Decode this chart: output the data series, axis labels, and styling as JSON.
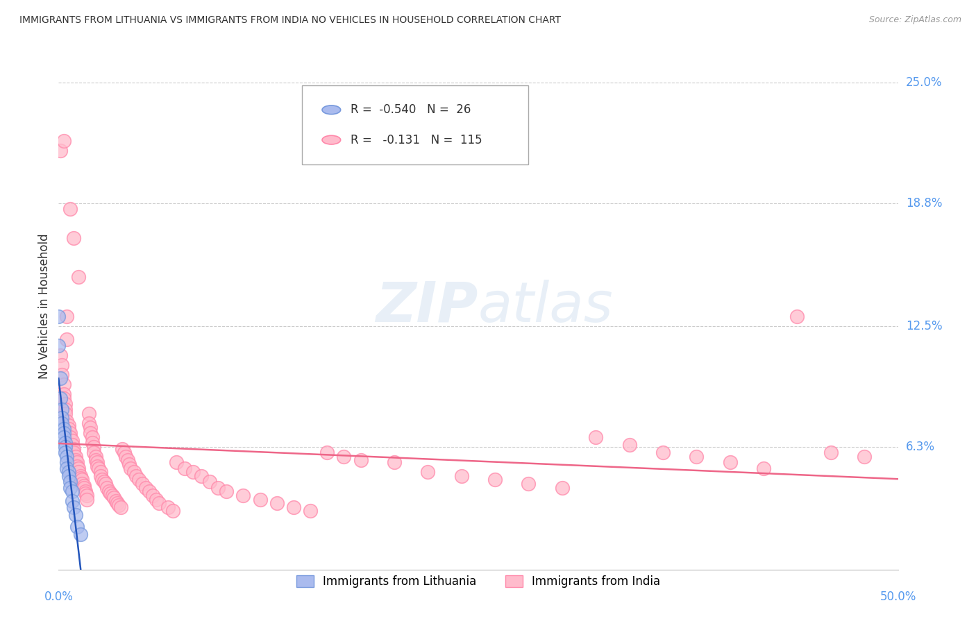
{
  "title": "IMMIGRANTS FROM LITHUANIA VS IMMIGRANTS FROM INDIA NO VEHICLES IN HOUSEHOLD CORRELATION CHART",
  "source": "Source: ZipAtlas.com",
  "ylabel": "No Vehicles in Household",
  "ytick_labels": [
    "25.0%",
    "18.8%",
    "12.5%",
    "6.3%"
  ],
  "ytick_values": [
    0.25,
    0.188,
    0.125,
    0.063
  ],
  "legend_lithuania_R": "-0.540",
  "legend_lithuania_N": "26",
  "legend_india_R": "-0.131",
  "legend_india_N": "115",
  "watermark_text": "ZIPatlas",
  "background_color": "#ffffff",
  "scatter_fill_lithuania": "#aabbee",
  "scatter_edge_lithuania": "#7799dd",
  "scatter_fill_india": "#ffbbcc",
  "scatter_edge_india": "#ff88aa",
  "line_color_lithuania": "#2255bb",
  "line_color_india": "#ee6688",
  "grid_color": "#cccccc",
  "tick_label_color": "#5599ee",
  "title_color": "#333333",
  "source_color": "#999999",
  "ylabel_color": "#333333",
  "legend_edge_color": "#aaaaaa",
  "lithuania_points": [
    [
      0.0,
      0.13
    ],
    [
      0.0,
      0.115
    ],
    [
      0.001,
      0.098
    ],
    [
      0.001,
      0.088
    ],
    [
      0.002,
      0.082
    ],
    [
      0.002,
      0.078
    ],
    [
      0.002,
      0.075
    ],
    [
      0.003,
      0.072
    ],
    [
      0.003,
      0.07
    ],
    [
      0.003,
      0.068
    ],
    [
      0.004,
      0.065
    ],
    [
      0.004,
      0.063
    ],
    [
      0.004,
      0.06
    ],
    [
      0.005,
      0.058
    ],
    [
      0.005,
      0.055
    ],
    [
      0.005,
      0.052
    ],
    [
      0.006,
      0.05
    ],
    [
      0.006,
      0.048
    ],
    [
      0.007,
      0.045
    ],
    [
      0.007,
      0.042
    ],
    [
      0.008,
      0.04
    ],
    [
      0.008,
      0.035
    ],
    [
      0.009,
      0.032
    ],
    [
      0.01,
      0.028
    ],
    [
      0.011,
      0.022
    ],
    [
      0.013,
      0.018
    ]
  ],
  "india_points": [
    [
      0.001,
      0.215
    ],
    [
      0.003,
      0.22
    ],
    [
      0.007,
      0.185
    ],
    [
      0.009,
      0.17
    ],
    [
      0.012,
      0.15
    ],
    [
      0.001,
      0.11
    ],
    [
      0.002,
      0.105
    ],
    [
      0.002,
      0.1
    ],
    [
      0.003,
      0.095
    ],
    [
      0.003,
      0.09
    ],
    [
      0.003,
      0.088
    ],
    [
      0.004,
      0.085
    ],
    [
      0.004,
      0.082
    ],
    [
      0.004,
      0.08
    ],
    [
      0.005,
      0.13
    ],
    [
      0.005,
      0.118
    ],
    [
      0.005,
      0.076
    ],
    [
      0.006,
      0.074
    ],
    [
      0.006,
      0.072
    ],
    [
      0.007,
      0.07
    ],
    [
      0.007,
      0.068
    ],
    [
      0.008,
      0.066
    ],
    [
      0.008,
      0.064
    ],
    [
      0.009,
      0.062
    ],
    [
      0.009,
      0.06
    ],
    [
      0.01,
      0.058
    ],
    [
      0.01,
      0.056
    ],
    [
      0.011,
      0.055
    ],
    [
      0.011,
      0.053
    ],
    [
      0.012,
      0.052
    ],
    [
      0.012,
      0.05
    ],
    [
      0.013,
      0.048
    ],
    [
      0.013,
      0.047
    ],
    [
      0.014,
      0.046
    ],
    [
      0.014,
      0.044
    ],
    [
      0.015,
      0.043
    ],
    [
      0.015,
      0.042
    ],
    [
      0.016,
      0.04
    ],
    [
      0.016,
      0.039
    ],
    [
      0.017,
      0.038
    ],
    [
      0.017,
      0.036
    ],
    [
      0.018,
      0.08
    ],
    [
      0.018,
      0.075
    ],
    [
      0.019,
      0.073
    ],
    [
      0.019,
      0.07
    ],
    [
      0.02,
      0.068
    ],
    [
      0.02,
      0.065
    ],
    [
      0.021,
      0.063
    ],
    [
      0.021,
      0.06
    ],
    [
      0.022,
      0.058
    ],
    [
      0.022,
      0.056
    ],
    [
      0.023,
      0.055
    ],
    [
      0.023,
      0.053
    ],
    [
      0.024,
      0.052
    ],
    [
      0.025,
      0.05
    ],
    [
      0.025,
      0.048
    ],
    [
      0.026,
      0.046
    ],
    [
      0.027,
      0.045
    ],
    [
      0.028,
      0.044
    ],
    [
      0.029,
      0.042
    ],
    [
      0.03,
      0.04
    ],
    [
      0.031,
      0.039
    ],
    [
      0.032,
      0.038
    ],
    [
      0.033,
      0.037
    ],
    [
      0.034,
      0.035
    ],
    [
      0.035,
      0.034
    ],
    [
      0.036,
      0.033
    ],
    [
      0.037,
      0.032
    ],
    [
      0.038,
      0.062
    ],
    [
      0.039,
      0.06
    ],
    [
      0.04,
      0.058
    ],
    [
      0.041,
      0.056
    ],
    [
      0.042,
      0.054
    ],
    [
      0.043,
      0.052
    ],
    [
      0.045,
      0.05
    ],
    [
      0.046,
      0.048
    ],
    [
      0.048,
      0.046
    ],
    [
      0.05,
      0.044
    ],
    [
      0.052,
      0.042
    ],
    [
      0.054,
      0.04
    ],
    [
      0.056,
      0.038
    ],
    [
      0.058,
      0.036
    ],
    [
      0.06,
      0.034
    ],
    [
      0.065,
      0.032
    ],
    [
      0.068,
      0.03
    ],
    [
      0.07,
      0.055
    ],
    [
      0.075,
      0.052
    ],
    [
      0.08,
      0.05
    ],
    [
      0.085,
      0.048
    ],
    [
      0.09,
      0.045
    ],
    [
      0.095,
      0.042
    ],
    [
      0.1,
      0.04
    ],
    [
      0.11,
      0.038
    ],
    [
      0.12,
      0.036
    ],
    [
      0.13,
      0.034
    ],
    [
      0.14,
      0.032
    ],
    [
      0.15,
      0.03
    ],
    [
      0.16,
      0.06
    ],
    [
      0.17,
      0.058
    ],
    [
      0.18,
      0.056
    ],
    [
      0.2,
      0.055
    ],
    [
      0.22,
      0.05
    ],
    [
      0.24,
      0.048
    ],
    [
      0.26,
      0.046
    ],
    [
      0.28,
      0.044
    ],
    [
      0.3,
      0.042
    ],
    [
      0.32,
      0.068
    ],
    [
      0.34,
      0.064
    ],
    [
      0.36,
      0.06
    ],
    [
      0.38,
      0.058
    ],
    [
      0.4,
      0.055
    ],
    [
      0.42,
      0.052
    ],
    [
      0.44,
      0.13
    ],
    [
      0.46,
      0.06
    ],
    [
      0.48,
      0.058
    ]
  ],
  "xlim": [
    0.0,
    0.5
  ],
  "ylim": [
    0.0,
    0.27
  ]
}
